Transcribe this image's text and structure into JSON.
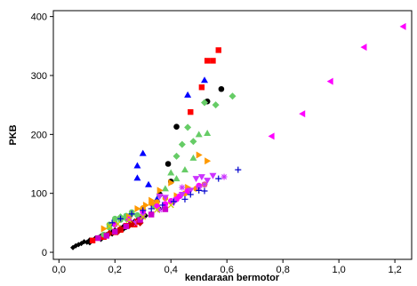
{
  "chart_data": {
    "type": "scatter",
    "xlabel": "kendaraan bermotor",
    "ylabel": "PKB",
    "xlim": [
      -0.02,
      1.26
    ],
    "ylim": [
      -12,
      410
    ],
    "x_ticks": [
      "0,0",
      "0,2",
      "0,4",
      "0,6",
      "0,8",
      "1,0",
      "1,2"
    ],
    "x_tick_values": [
      0.0,
      0.2,
      0.4,
      0.6,
      0.8,
      1.0,
      1.2
    ],
    "y_ticks": [
      "0",
      "100",
      "200",
      "300",
      "400"
    ],
    "y_tick_values": [
      0,
      100,
      200,
      300,
      400
    ],
    "grid": false,
    "legend": "none",
    "series": [
      {
        "color": "#000000",
        "marker": "diamond-small",
        "points": [
          [
            0.05,
            8
          ],
          [
            0.06,
            11
          ],
          [
            0.07,
            13
          ],
          [
            0.08,
            15
          ],
          [
            0.09,
            18
          ],
          [
            0.1,
            17
          ],
          [
            0.11,
            21
          ],
          [
            0.12,
            20
          ],
          [
            0.13,
            24
          ],
          [
            0.14,
            25
          ],
          [
            0.15,
            28
          ],
          [
            0.16,
            27
          ],
          [
            0.17,
            30
          ],
          [
            0.18,
            33
          ],
          [
            0.19,
            35
          ],
          [
            0.2,
            38
          ],
          [
            0.21,
            37
          ],
          [
            0.22,
            40
          ],
          [
            0.23,
            44
          ],
          [
            0.24,
            42
          ],
          [
            0.25,
            47
          ],
          [
            0.26,
            50
          ],
          [
            0.27,
            53
          ],
          [
            0.28,
            55
          ],
          [
            0.29,
            58
          ],
          [
            0.3,
            60
          ],
          [
            0.11,
            16
          ],
          [
            0.15,
            22
          ],
          [
            0.19,
            31
          ],
          [
            0.23,
            39
          ],
          [
            0.27,
            48
          ],
          [
            0.31,
            62
          ],
          [
            0.33,
            66
          ],
          [
            0.36,
            74
          ]
        ]
      },
      {
        "color": "#000000",
        "marker": "circle",
        "points": [
          [
            0.42,
            213
          ],
          [
            0.39,
            150
          ],
          [
            0.53,
            256
          ],
          [
            0.58,
            277
          ],
          [
            0.4,
            120
          ],
          [
            0.36,
            98
          ]
        ]
      },
      {
        "color": "#0000ff",
        "marker": "triangle-up",
        "points": [
          [
            0.28,
            147
          ],
          [
            0.3,
            168
          ],
          [
            0.28,
            126
          ],
          [
            0.46,
            267
          ],
          [
            0.52,
            292
          ],
          [
            0.32,
            115
          ],
          [
            0.35,
            90
          ]
        ]
      },
      {
        "color": "#ff0000",
        "marker": "square",
        "points": [
          [
            0.47,
            238
          ],
          [
            0.51,
            280
          ],
          [
            0.53,
            325
          ],
          [
            0.55,
            325
          ],
          [
            0.57,
            343
          ],
          [
            0.12,
            20
          ],
          [
            0.16,
            26
          ],
          [
            0.2,
            34
          ],
          [
            0.24,
            45
          ],
          [
            0.28,
            52
          ],
          [
            0.22,
            38
          ],
          [
            0.27,
            47
          ]
        ]
      },
      {
        "color": "#66cc66",
        "marker": "diamond",
        "points": [
          [
            0.44,
            183
          ],
          [
            0.46,
            212
          ],
          [
            0.52,
            254
          ],
          [
            0.56,
            250
          ],
          [
            0.62,
            265
          ],
          [
            0.42,
            163
          ],
          [
            0.48,
            188
          ],
          [
            0.22,
            60
          ],
          [
            0.26,
            65
          ],
          [
            0.3,
            72
          ],
          [
            0.34,
            78
          ],
          [
            0.24,
            57
          ]
        ]
      },
      {
        "color": "#66cc66",
        "marker": "circle",
        "points": [
          [
            0.16,
            30
          ],
          [
            0.18,
            42
          ],
          [
            0.2,
            50
          ],
          [
            0.22,
            55
          ],
          [
            0.24,
            62
          ],
          [
            0.26,
            68
          ],
          [
            0.28,
            63
          ],
          [
            0.3,
            70
          ],
          [
            0.18,
            47
          ],
          [
            0.2,
            57
          ],
          [
            0.25,
            58
          ]
        ]
      },
      {
        "color": "#66cc66",
        "marker": "triangle-up",
        "points": [
          [
            0.5,
            200
          ],
          [
            0.53,
            202
          ],
          [
            0.48,
            160
          ],
          [
            0.45,
            140
          ],
          [
            0.42,
            125
          ],
          [
            0.4,
            135
          ],
          [
            0.38,
            108
          ]
        ]
      },
      {
        "color": "#ff9900",
        "marker": "triangle-right",
        "points": [
          [
            0.36,
            105
          ],
          [
            0.4,
            118
          ],
          [
            0.5,
            165
          ],
          [
            0.53,
            155
          ],
          [
            0.33,
            88
          ],
          [
            0.28,
            74
          ],
          [
            0.46,
            110
          ],
          [
            0.16,
            40
          ],
          [
            0.25,
            60
          ],
          [
            0.31,
            80
          ],
          [
            0.42,
            96
          ]
        ]
      },
      {
        "color": "#ff9900",
        "marker": "circle",
        "points": [
          [
            0.33,
            83
          ],
          [
            0.38,
            92
          ],
          [
            0.45,
            100
          ],
          [
            0.52,
            115
          ],
          [
            0.49,
            108
          ],
          [
            0.3,
            75
          ],
          [
            0.35,
            85
          ]
        ]
      },
      {
        "color": "#ff00ff",
        "marker": "triangle-left",
        "points": [
          [
            0.76,
            197
          ],
          [
            0.87,
            235
          ],
          [
            0.97,
            290
          ],
          [
            1.09,
            348
          ],
          [
            1.23,
            383
          ]
        ]
      },
      {
        "color": "#ff00ff",
        "marker": "circle",
        "points": [
          [
            0.3,
            68
          ],
          [
            0.35,
            78
          ],
          [
            0.4,
            87
          ],
          [
            0.43,
            95
          ],
          [
            0.46,
            104
          ],
          [
            0.5,
            113
          ],
          [
            0.25,
            56
          ],
          [
            0.2,
            47
          ],
          [
            0.38,
            82
          ],
          [
            0.42,
            90
          ]
        ]
      },
      {
        "color": "#cc33ff",
        "marker": "triangle-down",
        "points": [
          [
            0.36,
            95
          ],
          [
            0.38,
            93
          ],
          [
            0.44,
            98
          ],
          [
            0.49,
            125
          ],
          [
            0.51,
            128
          ],
          [
            0.55,
            130
          ],
          [
            0.53,
            122
          ],
          [
            0.47,
            105
          ],
          [
            0.41,
            84
          ]
        ]
      },
      {
        "color": "#cc33ff",
        "marker": "asterisk",
        "points": [
          [
            0.44,
            110
          ],
          [
            0.5,
            110
          ],
          [
            0.52,
            115
          ],
          [
            0.59,
            128
          ],
          [
            0.36,
            72
          ],
          [
            0.33,
            65
          ],
          [
            0.3,
            63
          ],
          [
            0.27,
            50
          ],
          [
            0.41,
            88
          ]
        ]
      },
      {
        "color": "#0000cc",
        "marker": "plus",
        "points": [
          [
            0.64,
            140
          ],
          [
            0.57,
            125
          ],
          [
            0.5,
            105
          ],
          [
            0.45,
            90
          ],
          [
            0.41,
            86
          ],
          [
            0.37,
            80
          ],
          [
            0.33,
            74
          ],
          [
            0.3,
            71
          ],
          [
            0.26,
            65
          ],
          [
            0.22,
            57
          ],
          [
            0.19,
            50
          ],
          [
            0.52,
            104
          ],
          [
            0.47,
            98
          ]
        ]
      },
      {
        "color": "#cc0000",
        "marker": "diamond",
        "points": [
          [
            0.22,
            40
          ],
          [
            0.25,
            45
          ],
          [
            0.29,
            50
          ],
          [
            0.26,
            48
          ],
          [
            0.21,
            35
          ],
          [
            0.18,
            32
          ]
        ]
      },
      {
        "color": "#cc00cc",
        "marker": "square",
        "points": [
          [
            0.14,
            24
          ],
          [
            0.17,
            28
          ],
          [
            0.2,
            35
          ],
          [
            0.24,
            44
          ],
          [
            0.29,
            55
          ],
          [
            0.33,
            64
          ],
          [
            0.38,
            73
          ]
        ]
      },
      {
        "color": "#cccc00",
        "marker": "x",
        "points": [
          [
            0.18,
            44
          ],
          [
            0.21,
            48
          ],
          [
            0.25,
            55
          ],
          [
            0.3,
            60
          ],
          [
            0.35,
            72
          ],
          [
            0.4,
            80
          ]
        ]
      }
    ]
  }
}
